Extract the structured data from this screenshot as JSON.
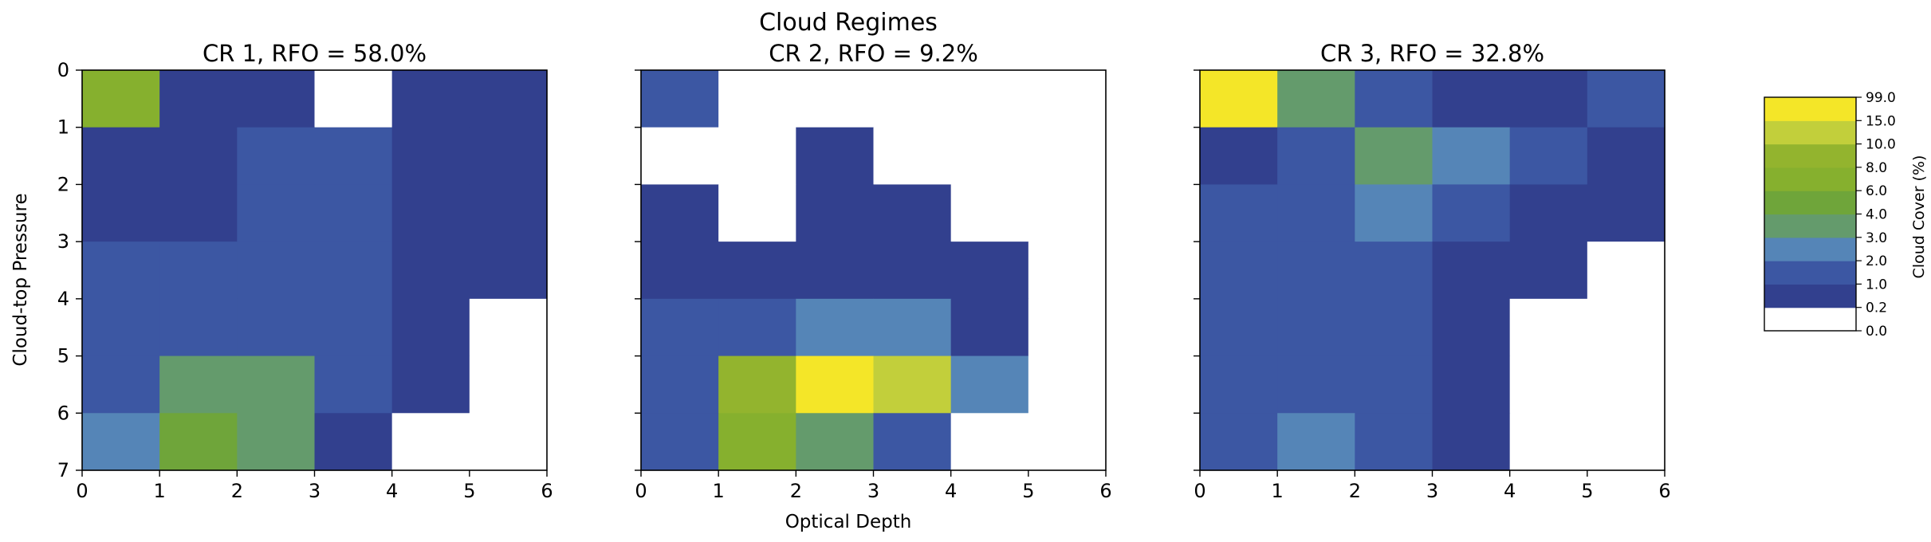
{
  "chart_data": {
    "type": "heatmap",
    "title": "Cloud Regimes",
    "xlabel": "Optical Depth",
    "ylabel": "Cloud-top Pressure",
    "x_ticks": [
      "0",
      "1",
      "2",
      "3",
      "4",
      "5",
      "6"
    ],
    "y_ticks": [
      "0",
      "1",
      "2",
      "3",
      "4",
      "5",
      "6",
      "7"
    ],
    "xlim": [
      0,
      6
    ],
    "ylim": [
      7,
      0
    ],
    "colorbar": {
      "label": "Cloud Cover (%)",
      "bounds": [
        0.0,
        0.2,
        1.0,
        2.0,
        3.0,
        4.0,
        6.0,
        8.0,
        10.0,
        15.0,
        99.0
      ],
      "tick_labels": [
        "0.0",
        "0.2",
        "1.0",
        "2.0",
        "3.0",
        "4.0",
        "6.0",
        "8.0",
        "10.0",
        "15.0",
        "99.0"
      ],
      "colors": [
        "#ffffff",
        "#32408e",
        "#3c57a3",
        "#5585b7",
        "#649b6c",
        "#6fa53a",
        "#86b02e",
        "#93b42e",
        "#c2cf3b",
        "#f4e628"
      ]
    },
    "panels": [
      {
        "title": "CR 1, RFO = 58.0%",
        "values": [
          [
            6.5,
            0.5,
            0.5,
            0.1,
            0.5,
            0.5
          ],
          [
            0.5,
            0.5,
            1.5,
            1.5,
            0.5,
            0.5
          ],
          [
            0.5,
            0.5,
            1.5,
            1.5,
            0.5,
            0.5
          ],
          [
            1.5,
            1.5,
            1.5,
            1.5,
            0.5,
            0.5
          ],
          [
            1.5,
            1.5,
            1.5,
            1.5,
            0.5,
            0.1
          ],
          [
            1.5,
            3.5,
            3.5,
            1.5,
            0.5,
            0.1
          ],
          [
            2.5,
            5.0,
            3.5,
            0.5,
            0.1,
            0.1
          ]
        ],
        "show_ylabels": true
      },
      {
        "title": "CR 2, RFO = 9.2%",
        "values": [
          [
            1.5,
            0.1,
            0.1,
            0.1,
            0.1,
            0.1
          ],
          [
            0.1,
            0.1,
            0.5,
            0.1,
            0.1,
            0.1
          ],
          [
            0.5,
            0.1,
            0.5,
            0.5,
            0.1,
            0.1
          ],
          [
            0.5,
            0.5,
            0.5,
            0.5,
            0.5,
            0.1
          ],
          [
            1.5,
            1.5,
            2.5,
            2.5,
            0.5,
            0.1
          ],
          [
            1.5,
            9.0,
            50.0,
            12.0,
            2.5,
            0.1
          ],
          [
            1.5,
            7.0,
            3.5,
            1.5,
            0.1,
            0.1
          ]
        ],
        "show_ylabels": false
      },
      {
        "title": "CR 3, RFO = 32.8%",
        "values": [
          [
            50.0,
            3.5,
            1.5,
            0.5,
            0.5,
            1.5
          ],
          [
            0.5,
            1.5,
            3.5,
            2.5,
            1.5,
            0.5
          ],
          [
            1.5,
            1.5,
            2.5,
            1.5,
            0.5,
            0.5
          ],
          [
            1.5,
            1.5,
            1.5,
            0.5,
            0.5,
            0.1
          ],
          [
            1.5,
            1.5,
            1.5,
            0.5,
            0.1,
            0.1
          ],
          [
            1.5,
            1.5,
            1.5,
            0.5,
            0.1,
            0.1
          ],
          [
            1.5,
            2.5,
            1.5,
            0.5,
            0.1,
            0.1
          ]
        ],
        "show_ylabels": false
      }
    ]
  }
}
